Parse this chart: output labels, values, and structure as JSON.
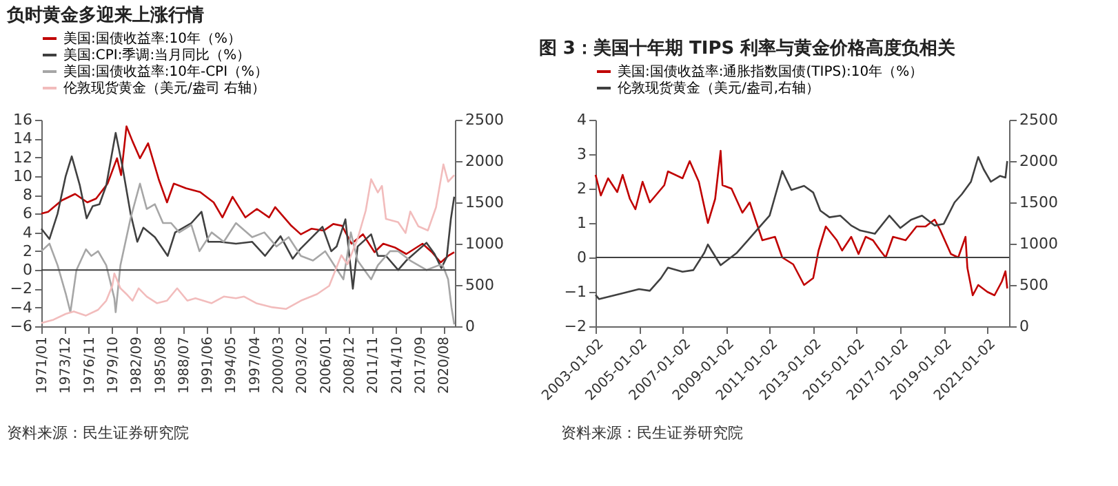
{
  "chart_data": [
    {
      "type": "line",
      "title": "负时黄金多迎来上涨行情",
      "xlim": [
        "1971-01",
        "2022-01"
      ],
      "xticks": [
        {
          "value": "1971-01",
          "label": "1971/01"
        },
        {
          "value": "1973-12",
          "label": "1973/12"
        },
        {
          "value": "1976-11",
          "label": "1976/11"
        },
        {
          "value": "1979-10",
          "label": "1979/10"
        },
        {
          "value": "1982-09",
          "label": "1982/09"
        },
        {
          "value": "1985-08",
          "label": "1985/08"
        },
        {
          "value": "1988-07",
          "label": "1988/07"
        },
        {
          "value": "1991-06",
          "label": "1991/06"
        },
        {
          "value": "1994-05",
          "label": "1994/05"
        },
        {
          "value": "1997-04",
          "label": "1997/04"
        },
        {
          "value": "2000-03",
          "label": "2000/03"
        },
        {
          "value": "2003-02",
          "label": "2003/02"
        },
        {
          "value": "2006-01",
          "label": "2006/01"
        },
        {
          "value": "2008-12",
          "label": "2008/12"
        },
        {
          "value": "2011-11",
          "label": "2011/11"
        },
        {
          "value": "2014-10",
          "label": "2014/10"
        },
        {
          "value": "2017-09",
          "label": "2017/09"
        },
        {
          "value": "2020-08",
          "label": "2020/08"
        }
      ],
      "ylim": [
        -6,
        16
      ],
      "yticks": [
        -6,
        -4,
        -2,
        0,
        2,
        4,
        6,
        8,
        10,
        12,
        14,
        16
      ],
      "y2lim": [
        0,
        2500
      ],
      "y2ticks": [
        0,
        500,
        1000,
        1500,
        2000,
        2500
      ],
      "legend": "top",
      "grid": false,
      "marker": "none",
      "line_style": "solid",
      "ref_lines": [
        {
          "axis": "y",
          "value": 0,
          "color": "#404040"
        }
      ],
      "annotations": [
        "资料来源：民生证券研究院"
      ],
      "series": [
        {
          "name": "美国:国债收益率:10年（%）",
          "color": "#c00000",
          "x": [
            "1971-01",
            "1971-11",
            "1973-07",
            "1975-03",
            "1976-09",
            "1977-10",
            "1979-03",
            "1980-05",
            "1980-11",
            "1981-07",
            "1982-04",
            "1983-03",
            "1984-03",
            "1985-07",
            "1986-07",
            "1987-05",
            "1988-11",
            "1990-08",
            "1992-04",
            "1993-05",
            "1994-08",
            "1996-03",
            "1997-08",
            "1999-02",
            "1999-11",
            "2001-11",
            "2003-01",
            "2004-05",
            "2005-11",
            "2007-01",
            "2008-02",
            "2009-04",
            "2010-09",
            "2012-02",
            "2013-03",
            "2014-08",
            "2016-01",
            "2018-01",
            "2019-03",
            "2020-04",
            "2021-03",
            "2021-12"
          ],
          "values": [
            6.0,
            6.2,
            7.4,
            8.1,
            7.2,
            7.6,
            9.2,
            11.9,
            10.1,
            15.3,
            13.7,
            11.9,
            13.5,
            9.6,
            7.2,
            9.2,
            8.7,
            8.3,
            7.2,
            5.6,
            7.8,
            5.6,
            6.5,
            5.6,
            6.7,
            4.7,
            3.8,
            4.4,
            4.2,
            4.9,
            4.7,
            2.8,
            3.8,
            1.9,
            2.8,
            2.4,
            1.7,
            2.8,
            1.9,
            0.8,
            1.5,
            1.9
          ]
        },
        {
          "name": "美国:CPI:季调:当月同比（%）",
          "color": "#404040",
          "x": [
            "1971-01",
            "1972-01",
            "1973-01",
            "1974-01",
            "1974-10",
            "1975-10",
            "1976-08",
            "1977-05",
            "1978-03",
            "1979-01",
            "1980-03",
            "1981-01",
            "1982-01",
            "1982-11",
            "1983-08",
            "1985-01",
            "1986-08",
            "1987-07",
            "1989-07",
            "1990-10",
            "1991-08",
            "1993-01",
            "1995-01",
            "1997-01",
            "1998-08",
            "2000-07",
            "2002-01",
            "2003-01",
            "2005-09",
            "2006-10",
            "2007-06",
            "2008-07",
            "2009-06",
            "2010-01",
            "2011-09",
            "2012-07",
            "2013-07",
            "2015-01",
            "2016-01",
            "2018-07",
            "2019-07",
            "2020-05",
            "2021-01",
            "2021-07",
            "2021-12"
          ],
          "values": [
            4.4,
            3.3,
            6.0,
            10.0,
            12.1,
            9.0,
            5.5,
            6.8,
            7.0,
            9.0,
            14.6,
            11.0,
            6.0,
            3.0,
            4.5,
            3.5,
            1.5,
            4.0,
            5.0,
            6.2,
            3.0,
            3.0,
            2.8,
            3.0,
            1.5,
            3.6,
            1.2,
            2.3,
            4.6,
            2.0,
            2.5,
            5.4,
            -2.0,
            2.5,
            3.8,
            1.5,
            1.5,
            0.0,
            1.0,
            2.9,
            1.7,
            0.2,
            1.4,
            5.4,
            7.8
          ]
        },
        {
          "name": "美国:国债收益率:10年-CPI（%）",
          "color": "#a6a6a6",
          "x": [
            "1971-01",
            "1972-01",
            "1973-01",
            "1974-01",
            "1974-08",
            "1975-05",
            "1976-07",
            "1977-03",
            "1978-01",
            "1979-01",
            "1980-01",
            "1980-03",
            "1980-10",
            "1982-01",
            "1983-03",
            "1984-01",
            "1985-01",
            "1986-01",
            "1987-01",
            "1988-01",
            "1989-07",
            "1990-07",
            "1992-01",
            "1993-07",
            "1995-01",
            "1997-01",
            "1998-07",
            "2000-01",
            "2001-07",
            "2003-01",
            "2004-07",
            "2006-01",
            "2007-07",
            "2008-04",
            "2009-03",
            "2010-01",
            "2011-09",
            "2012-07",
            "2014-01",
            "2015-01",
            "2016-07",
            "2018-07",
            "2020-01",
            "2020-07",
            "2021-03",
            "2021-08",
            "2021-12"
          ],
          "values": [
            2.0,
            2.8,
            0.5,
            -2.5,
            -4.5,
            0.0,
            2.2,
            1.5,
            2.0,
            0.5,
            -3.0,
            -4.5,
            0.5,
            5.5,
            9.2,
            6.5,
            7.0,
            5.0,
            5.0,
            4.0,
            4.8,
            2.0,
            4.0,
            3.0,
            5.0,
            3.5,
            4.0,
            2.5,
            3.5,
            1.5,
            1.0,
            2.0,
            0.0,
            -1.0,
            4.0,
            1.0,
            -1.0,
            0.5,
            2.0,
            2.0,
            1.0,
            0.0,
            0.5,
            0.5,
            -1.0,
            -4.0,
            -5.8
          ]
        },
        {
          "name": "伦敦现货黄金（美元/盎司 右轴）",
          "color": "#f2bcbc",
          "axis": "y2",
          "x": [
            "1971-01",
            "1972-07",
            "1974-01",
            "1975-01",
            "1976-07",
            "1978-01",
            "1979-01",
            "1979-10",
            "1980-01",
            "1980-10",
            "1981-07",
            "1982-04",
            "1983-01",
            "1984-01",
            "1985-04",
            "1986-07",
            "1987-10",
            "1989-01",
            "1990-01",
            "1992-01",
            "1993-07",
            "1995-01",
            "1996-01",
            "1997-07",
            "1999-07",
            "2001-03",
            "2003-01",
            "2005-01",
            "2006-07",
            "2008-01",
            "2008-10",
            "2010-01",
            "2011-01",
            "2011-09",
            "2012-07",
            "2013-01",
            "2013-07",
            "2015-01",
            "2015-12",
            "2016-07",
            "2017-07",
            "2018-09",
            "2019-09",
            "2020-08",
            "2021-03",
            "2021-12"
          ],
          "values": [
            40,
            80,
            150,
            180,
            130,
            200,
            310,
            490,
            640,
            460,
            390,
            310,
            460,
            360,
            280,
            310,
            460,
            310,
            340,
            280,
            360,
            340,
            360,
            280,
            230,
            210,
            310,
            390,
            490,
            860,
            750,
            1060,
            1400,
            1780,
            1620,
            1700,
            1300,
            1260,
            1130,
            1390,
            1210,
            1160,
            1440,
            1960,
            1750,
            1830
          ]
        }
      ]
    },
    {
      "type": "line",
      "title": "图 3：美国十年期 TIPS 利率与黄金价格高度负相关",
      "xlim": [
        "2003-01-02",
        "2022-01"
      ],
      "xticks": [
        {
          "value": "2003-01-02",
          "label": "2003-01-02"
        },
        {
          "value": "2005-01-02",
          "label": "2005-01-02"
        },
        {
          "value": "2007-01-02",
          "label": "2007-01-02"
        },
        {
          "value": "2009-01-02",
          "label": "2009-01-02"
        },
        {
          "value": "2011-01-02",
          "label": "2011-01-02"
        },
        {
          "value": "2013-01-02",
          "label": "2013-01-02"
        },
        {
          "value": "2015-01-02",
          "label": "2015-01-02"
        },
        {
          "value": "2017-01-02",
          "label": "2017-01-02"
        },
        {
          "value": "2019-01-02",
          "label": "2019-01-02"
        },
        {
          "value": "2021-01-02",
          "label": "2021-01-02"
        }
      ],
      "ylim": [
        -2,
        4
      ],
      "yticks": [
        -2,
        -1,
        0,
        1,
        2,
        3,
        4
      ],
      "y2lim": [
        0,
        2500
      ],
      "y2ticks": [
        0,
        500,
        1000,
        1500,
        2000,
        2500
      ],
      "legend": "top",
      "grid": false,
      "marker": "none",
      "line_style": "solid",
      "ref_lines": [
        {
          "axis": "y",
          "value": 0,
          "color": "#404040"
        }
      ],
      "annotations": [
        "资料来源：民生证券研究院"
      ],
      "series": [
        {
          "name": "美国:国债收益率:通胀指数国债(TIPS):10年（%）",
          "color": "#c00000",
          "x": [
            "2003-01-02",
            "2003-04",
            "2003-08",
            "2004-01",
            "2004-04",
            "2004-08",
            "2004-11",
            "2005-03",
            "2005-07",
            "2006-03",
            "2006-05",
            "2007-01",
            "2007-05",
            "2007-10",
            "2008-03",
            "2008-07",
            "2008-10",
            "2008-11",
            "2009-04",
            "2009-10",
            "2010-02",
            "2010-09",
            "2011-04",
            "2011-08",
            "2012-02",
            "2012-08",
            "2013-01",
            "2013-04",
            "2013-08",
            "2014-02",
            "2014-05",
            "2014-10",
            "2015-02",
            "2015-06",
            "2015-10",
            "2016-02",
            "2016-05",
            "2016-09",
            "2017-04",
            "2017-10",
            "2018-03",
            "2018-08",
            "2018-11",
            "2019-05",
            "2019-09",
            "2020-01",
            "2020-02",
            "2020-05",
            "2020-08",
            "2021-01",
            "2021-05",
            "2021-09",
            "2021-11",
            "2021-12"
          ],
          "values": [
            2.4,
            1.8,
            2.3,
            1.9,
            2.4,
            1.7,
            1.4,
            2.2,
            1.6,
            2.1,
            2.5,
            2.3,
            2.8,
            2.2,
            1.0,
            1.7,
            3.1,
            2.1,
            2.0,
            1.3,
            1.6,
            0.5,
            0.6,
            0.0,
            -0.2,
            -0.8,
            -0.6,
            0.2,
            0.9,
            0.5,
            0.2,
            0.6,
            0.1,
            0.6,
            0.5,
            0.2,
            0.0,
            0.6,
            0.5,
            0.9,
            0.9,
            1.1,
            0.8,
            0.1,
            0.0,
            0.6,
            -0.3,
            -1.1,
            -0.8,
            -1.0,
            -1.1,
            -0.7,
            -0.4,
            -0.9
          ]
        },
        {
          "name": "伦敦现货黄金（美元/盎司,右轴）",
          "color": "#404040",
          "axis": "y2",
          "x": [
            "2003-01-02",
            "2003-03",
            "2004-04",
            "2005-01",
            "2005-07",
            "2006-01",
            "2006-05",
            "2007-01",
            "2007-07",
            "2008-01",
            "2008-03",
            "2008-10",
            "2009-07",
            "2010-01",
            "2010-07",
            "2011-01",
            "2011-08",
            "2012-01",
            "2012-08",
            "2013-01",
            "2013-05",
            "2013-10",
            "2014-04",
            "2014-10",
            "2015-03",
            "2015-11",
            "2016-07",
            "2017-01",
            "2017-07",
            "2018-01",
            "2018-08",
            "2019-01",
            "2019-07",
            "2019-11",
            "2020-04",
            "2020-08",
            "2020-11",
            "2021-03",
            "2021-08",
            "2021-11",
            "2021-12"
          ],
          "values": [
            380,
            330,
            400,
            450,
            430,
            580,
            710,
            660,
            680,
            890,
            990,
            740,
            890,
            1040,
            1190,
            1340,
            1880,
            1650,
            1700,
            1620,
            1400,
            1320,
            1340,
            1220,
            1160,
            1120,
            1340,
            1190,
            1290,
            1340,
            1220,
            1240,
            1500,
            1600,
            1750,
            2050,
            1900,
            1750,
            1820,
            1800,
            2000
          ]
        }
      ]
    }
  ]
}
